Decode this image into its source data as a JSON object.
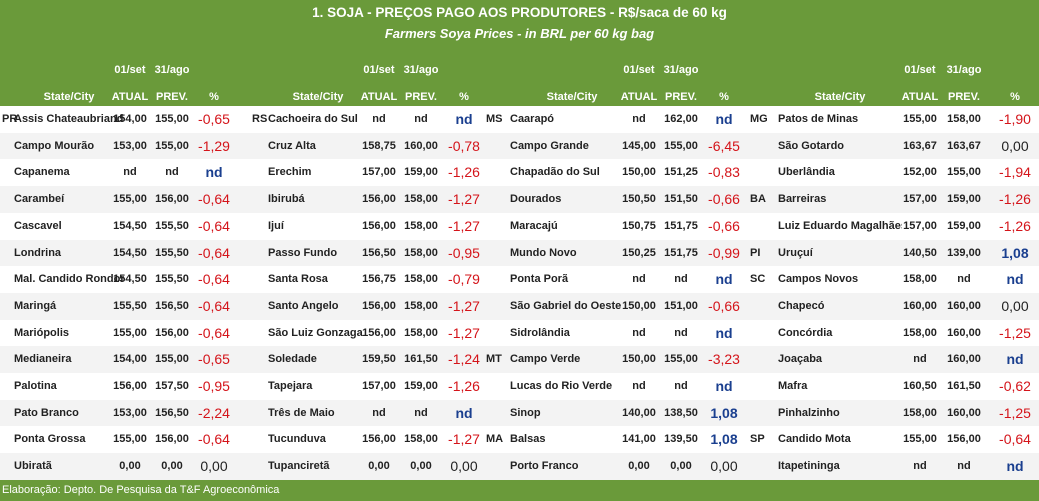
{
  "title": "1. SOJA - PREÇOS PAGO AOS PRODUTORES - R$/saca de 60 kg",
  "subtitle": "Farmers Soya Prices - in BRL per 60 kg bag",
  "headers": {
    "city": "State/City",
    "d1": "01/set",
    "d2": "31/ago",
    "atual": "ATUAL",
    "prev": "PREV.",
    "pct": "%"
  },
  "footer": "Elaboração: Depto. De Pesquisa da T&F Agroeconômica",
  "colors": {
    "header_bg": "#6a9a3a",
    "negative": "#d4141a",
    "positive": "#1a3f8f"
  },
  "blocks": [
    {
      "rows": [
        {
          "st": "PR",
          "city": "Assis Chateaubriand",
          "atual": "154,00",
          "prev": "155,00",
          "pct": "-0,65"
        },
        {
          "st": "",
          "city": "Campo Mourão",
          "atual": "153,00",
          "prev": "155,00",
          "pct": "-1,29"
        },
        {
          "st": "",
          "city": "Capanema",
          "atual": "nd",
          "prev": "nd",
          "pct": "nd"
        },
        {
          "st": "",
          "city": "Carambeí",
          "atual": "155,00",
          "prev": "156,00",
          "pct": "-0,64"
        },
        {
          "st": "",
          "city": "Cascavel",
          "atual": "154,50",
          "prev": "155,50",
          "pct": "-0,64"
        },
        {
          "st": "",
          "city": "Londrina",
          "atual": "154,50",
          "prev": "155,50",
          "pct": "-0,64"
        },
        {
          "st": "",
          "city": "Mal. Candido Rondon",
          "atual": "154,50",
          "prev": "155,50",
          "pct": "-0,64"
        },
        {
          "st": "",
          "city": "Maringá",
          "atual": "155,50",
          "prev": "156,50",
          "pct": "-0,64"
        },
        {
          "st": "",
          "city": "Mariópolis",
          "atual": "155,00",
          "prev": "156,00",
          "pct": "-0,64"
        },
        {
          "st": "",
          "city": "Medianeira",
          "atual": "154,00",
          "prev": "155,00",
          "pct": "-0,65"
        },
        {
          "st": "",
          "city": "Palotina",
          "atual": "156,00",
          "prev": "157,50",
          "pct": "-0,95"
        },
        {
          "st": "",
          "city": "Pato Branco",
          "atual": "153,00",
          "prev": "156,50",
          "pct": "-2,24"
        },
        {
          "st": "",
          "city": "Ponta Grossa",
          "atual": "155,00",
          "prev": "156,00",
          "pct": "-0,64"
        },
        {
          "st": "",
          "city": "Ubiratã",
          "atual": "0,00",
          "prev": "0,00",
          "pct": "0,00"
        }
      ]
    },
    {
      "rows": [
        {
          "st": "RS",
          "city": "Cachoeira do Sul",
          "atual": "nd",
          "prev": "nd",
          "pct": "nd"
        },
        {
          "st": "",
          "city": "Cruz Alta",
          "atual": "158,75",
          "prev": "160,00",
          "pct": "-0,78"
        },
        {
          "st": "",
          "city": "Erechim",
          "atual": "157,00",
          "prev": "159,00",
          "pct": "-1,26"
        },
        {
          "st": "",
          "city": "Ibirubá",
          "atual": "156,00",
          "prev": "158,00",
          "pct": "-1,27"
        },
        {
          "st": "",
          "city": "Ijuí",
          "atual": "156,00",
          "prev": "158,00",
          "pct": "-1,27"
        },
        {
          "st": "",
          "city": "Passo Fundo",
          "atual": "156,50",
          "prev": "158,00",
          "pct": "-0,95"
        },
        {
          "st": "",
          "city": "Santa Rosa",
          "atual": "156,75",
          "prev": "158,00",
          "pct": "-0,79"
        },
        {
          "st": "",
          "city": "Santo Angelo",
          "atual": "156,00",
          "prev": "158,00",
          "pct": "-1,27"
        },
        {
          "st": "",
          "city": "São Luiz Gonzaga",
          "atual": "156,00",
          "prev": "158,00",
          "pct": "-1,27"
        },
        {
          "st": "",
          "city": "Soledade",
          "atual": "159,50",
          "prev": "161,50",
          "pct": "-1,24"
        },
        {
          "st": "",
          "city": "Tapejara",
          "atual": "157,00",
          "prev": "159,00",
          "pct": "-1,26"
        },
        {
          "st": "",
          "city": "Três de Maio",
          "atual": "nd",
          "prev": "nd",
          "pct": "nd"
        },
        {
          "st": "",
          "city": "Tucunduva",
          "atual": "156,00",
          "prev": "158,00",
          "pct": "-1,27"
        },
        {
          "st": "",
          "city": "Tupanciretã",
          "atual": "0,00",
          "prev": "0,00",
          "pct": "0,00"
        }
      ]
    },
    {
      "rows": [
        {
          "st": "MS",
          "city": "Caarapó",
          "atual": "nd",
          "prev": "162,00",
          "pct": "nd"
        },
        {
          "st": "",
          "city": "Campo Grande",
          "atual": "145,00",
          "prev": "155,00",
          "pct": "-6,45"
        },
        {
          "st": "",
          "city": "Chapadão do Sul",
          "atual": "150,00",
          "prev": "151,25",
          "pct": "-0,83"
        },
        {
          "st": "",
          "city": "Dourados",
          "atual": "150,50",
          "prev": "151,50",
          "pct": "-0,66"
        },
        {
          "st": "",
          "city": "Maracajú",
          "atual": "150,75",
          "prev": "151,75",
          "pct": "-0,66"
        },
        {
          "st": "",
          "city": "Mundo Novo",
          "atual": "150,25",
          "prev": "151,75",
          "pct": "-0,99"
        },
        {
          "st": "",
          "city": "Ponta Porã",
          "atual": "nd",
          "prev": "nd",
          "pct": "nd"
        },
        {
          "st": "",
          "city": "São Gabriel do Oeste",
          "atual": "150,00",
          "prev": "151,00",
          "pct": "-0,66"
        },
        {
          "st": "",
          "city": "Sidrolândia",
          "atual": "nd",
          "prev": "nd",
          "pct": "nd"
        },
        {
          "st": "MT",
          "city": "Campo Verde",
          "atual": "150,00",
          "prev": "155,00",
          "pct": "-3,23"
        },
        {
          "st": "",
          "city": "Lucas do Rio Verde",
          "atual": "nd",
          "prev": "nd",
          "pct": "nd"
        },
        {
          "st": "",
          "city": "Sinop",
          "atual": "140,00",
          "prev": "138,50",
          "pct": "1,08"
        },
        {
          "st": "MA",
          "city": "Balsas",
          "atual": "141,00",
          "prev": "139,50",
          "pct": "1,08"
        },
        {
          "st": "",
          "city": "Porto Franco",
          "atual": "0,00",
          "prev": "0,00",
          "pct": "0,00"
        }
      ]
    },
    {
      "rows": [
        {
          "st": "MG",
          "city": "Patos de Minas",
          "atual": "155,00",
          "prev": "158,00",
          "pct": "-1,90"
        },
        {
          "st": "",
          "city": "São Gotardo",
          "atual": "163,67",
          "prev": "163,67",
          "pct": "0,00"
        },
        {
          "st": "",
          "city": "Uberlândia",
          "atual": "152,00",
          "prev": "155,00",
          "pct": "-1,94"
        },
        {
          "st": "BA",
          "city": "Barreiras",
          "atual": "157,00",
          "prev": "159,00",
          "pct": "-1,26"
        },
        {
          "st": "",
          "city": "Luiz Eduardo Magalhães",
          "atual": "157,00",
          "prev": "159,00",
          "pct": "-1,26"
        },
        {
          "st": "PI",
          "city": "Uruçuí",
          "atual": "140,50",
          "prev": "139,00",
          "pct": "1,08"
        },
        {
          "st": "SC",
          "city": "Campos Novos",
          "atual": "158,00",
          "prev": "nd",
          "pct": "nd"
        },
        {
          "st": "",
          "city": "Chapecó",
          "atual": "160,00",
          "prev": "160,00",
          "pct": "0,00"
        },
        {
          "st": "",
          "city": "Concórdia",
          "atual": "158,00",
          "prev": "160,00",
          "pct": "-1,25"
        },
        {
          "st": "",
          "city": "Joaçaba",
          "atual": "nd",
          "prev": "160,00",
          "pct": "nd"
        },
        {
          "st": "",
          "city": "Mafra",
          "atual": "160,50",
          "prev": "161,50",
          "pct": "-0,62"
        },
        {
          "st": "",
          "city": "Pinhalzinho",
          "atual": "158,00",
          "prev": "160,00",
          "pct": "-1,25"
        },
        {
          "st": "SP",
          "city": "Candido Mota",
          "atual": "155,00",
          "prev": "156,00",
          "pct": "-0,64"
        },
        {
          "st": "",
          "city": "Itapetininga",
          "atual": "nd",
          "prev": "nd",
          "pct": "nd"
        }
      ]
    }
  ]
}
